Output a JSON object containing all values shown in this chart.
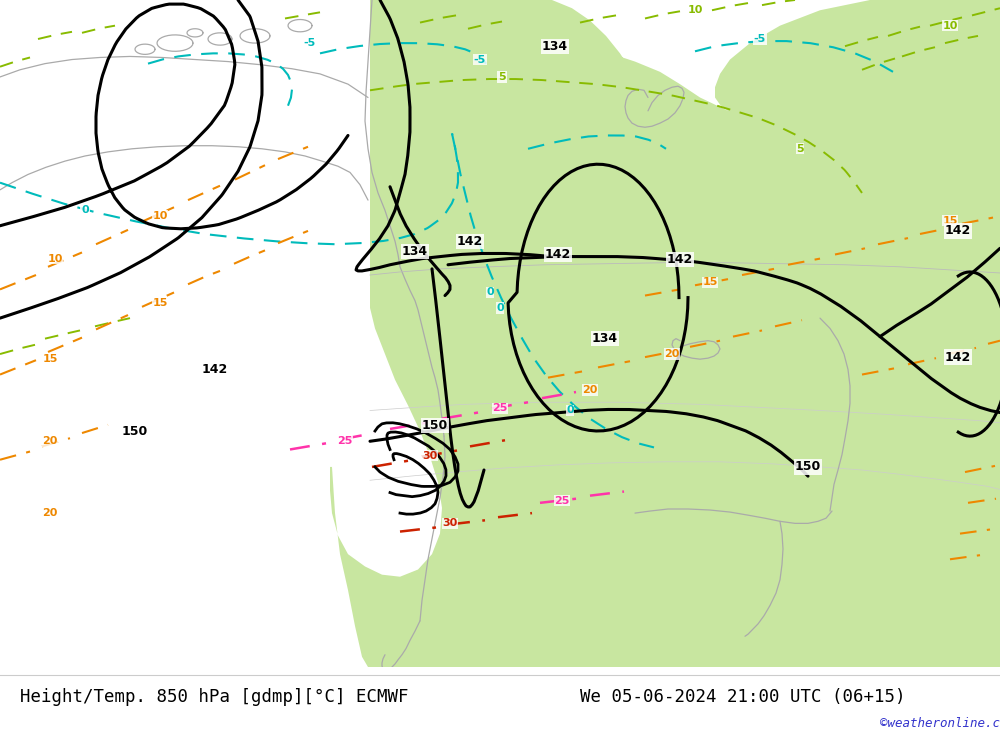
{
  "title_left": "Height/Temp. 850 hPa [gdmp][°C] ECMWF",
  "title_right": "We 05-06-2024 21:00 UTC (06+15)",
  "watermark": "©weatheronline.co.uk",
  "bg_color": "#e8e8e8",
  "green_color": "#c8e6a0",
  "coast_color": "#aaaaaa",
  "title_color": "#000000",
  "watermark_color": "#3333cc",
  "title_fontsize": 12.5,
  "fig_width": 10.0,
  "fig_height": 7.33,
  "colors": {
    "black_contour": "#000000",
    "cyan_temp": "#00bbbb",
    "blue_temp": "#3399ff",
    "lime_temp": "#88bb00",
    "orange_temp": "#ee8800",
    "pink_temp": "#ff33aa",
    "red_temp": "#cc2200"
  }
}
